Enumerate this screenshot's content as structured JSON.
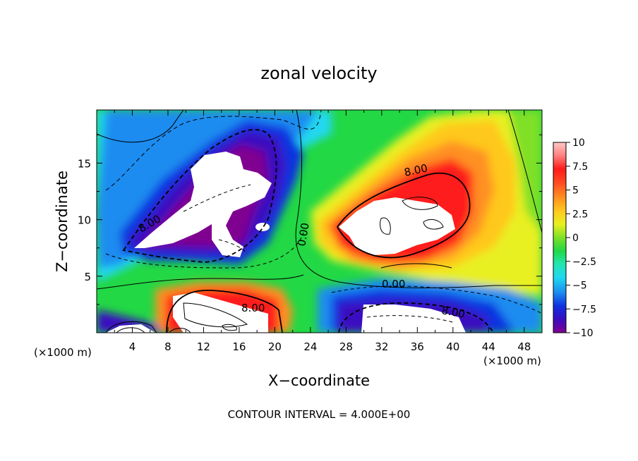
{
  "chart_data": {
    "type": "contour",
    "title": "zonal velocity",
    "xlabel": "X−coordinate",
    "ylabel": "Z−coordinate",
    "x_unit_left": "(×1000 m)",
    "x_unit_right": "(×1000 m)",
    "footer": "CONTOUR INTERVAL = 4.000E+00",
    "xlim": [
      0,
      50
    ],
    "ylim": [
      0,
      19.7
    ],
    "x_ticks": [
      "4",
      "8",
      "12",
      "16",
      "20",
      "24",
      "28",
      "32",
      "36",
      "40",
      "44",
      "48"
    ],
    "y_ticks": [
      "5",
      "10",
      "15"
    ],
    "colorbar": {
      "range": [
        -10,
        10
      ],
      "ticks": [
        "10",
        "7.5",
        "5",
        "2.5",
        "0",
        "−2.5",
        "−5",
        "−7.5",
        "−10"
      ],
      "colors": [
        "#800090",
        "#3a0cc0",
        "#1030e0",
        "#1a8cf0",
        "#20d8f0",
        "#22e6b0",
        "#22d845",
        "#7fe026",
        "#e8f020",
        "#ffc81e",
        "#ff9020",
        "#ff4a22",
        "#ff1a1a",
        "#ff8080",
        "#ffc8c8"
      ]
    },
    "contour_labels": [
      {
        "text": "8.00",
        "x": 5.2,
        "z": 10.0
      },
      {
        "text": "0.00",
        "x": 22.6,
        "z": 9.0
      },
      {
        "text": "8.00",
        "x": 36.2,
        "z": 14.7
      },
      {
        "text": "0.00",
        "x": 33.0,
        "z": 4.6
      },
      {
        "text": "8.00",
        "x": 17.5,
        "z": 2.3
      },
      {
        "text": "8.00",
        "x": 40.0,
        "z": 1.9
      }
    ]
  }
}
